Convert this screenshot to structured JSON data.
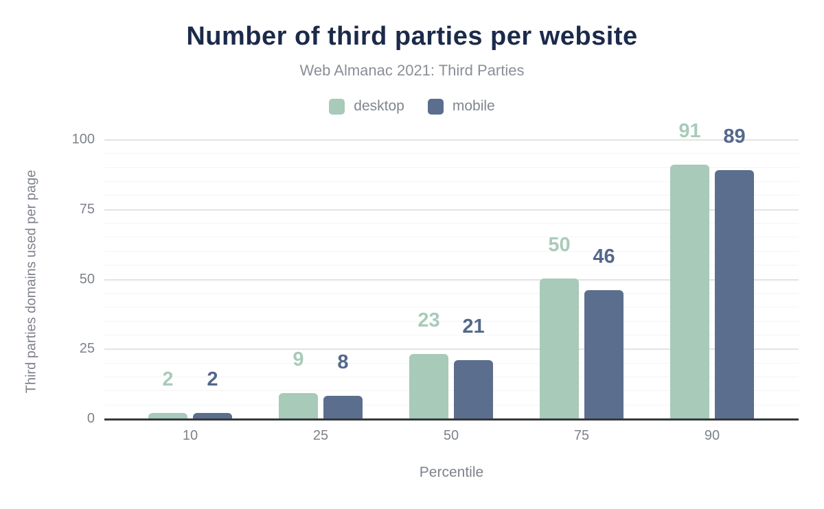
{
  "chart_data": {
    "type": "bar",
    "title": "Number of third parties per website",
    "subtitle": "Web Almanac 2021: Third Parties",
    "xlabel": "Percentile",
    "ylabel": "Third parties domains used per page",
    "categories": [
      "10",
      "25",
      "50",
      "75",
      "90"
    ],
    "series": [
      {
        "name": "desktop",
        "color": "#a8cab8",
        "label_color": "#a9cbb9",
        "values": [
          2,
          9,
          23,
          50,
          91
        ]
      },
      {
        "name": "mobile",
        "color": "#5b6e8d",
        "label_color": "#54688c",
        "values": [
          2,
          8,
          21,
          46,
          89
        ]
      }
    ],
    "ylim": [
      0,
      100
    ],
    "yticks": [
      0,
      25,
      50,
      75,
      100
    ],
    "minor_grid_step": 5,
    "major_grid_step": 25,
    "grid": true,
    "legend_position": "top"
  },
  "colors": {
    "background": "#ffffff",
    "title": "#1c2a4a",
    "subtitle": "#8a8e96",
    "axis_text": "#7d828a",
    "axis_line": "#35383c",
    "grid_major": "#e3e3e3",
    "grid_minor": "#f4f4f4"
  }
}
